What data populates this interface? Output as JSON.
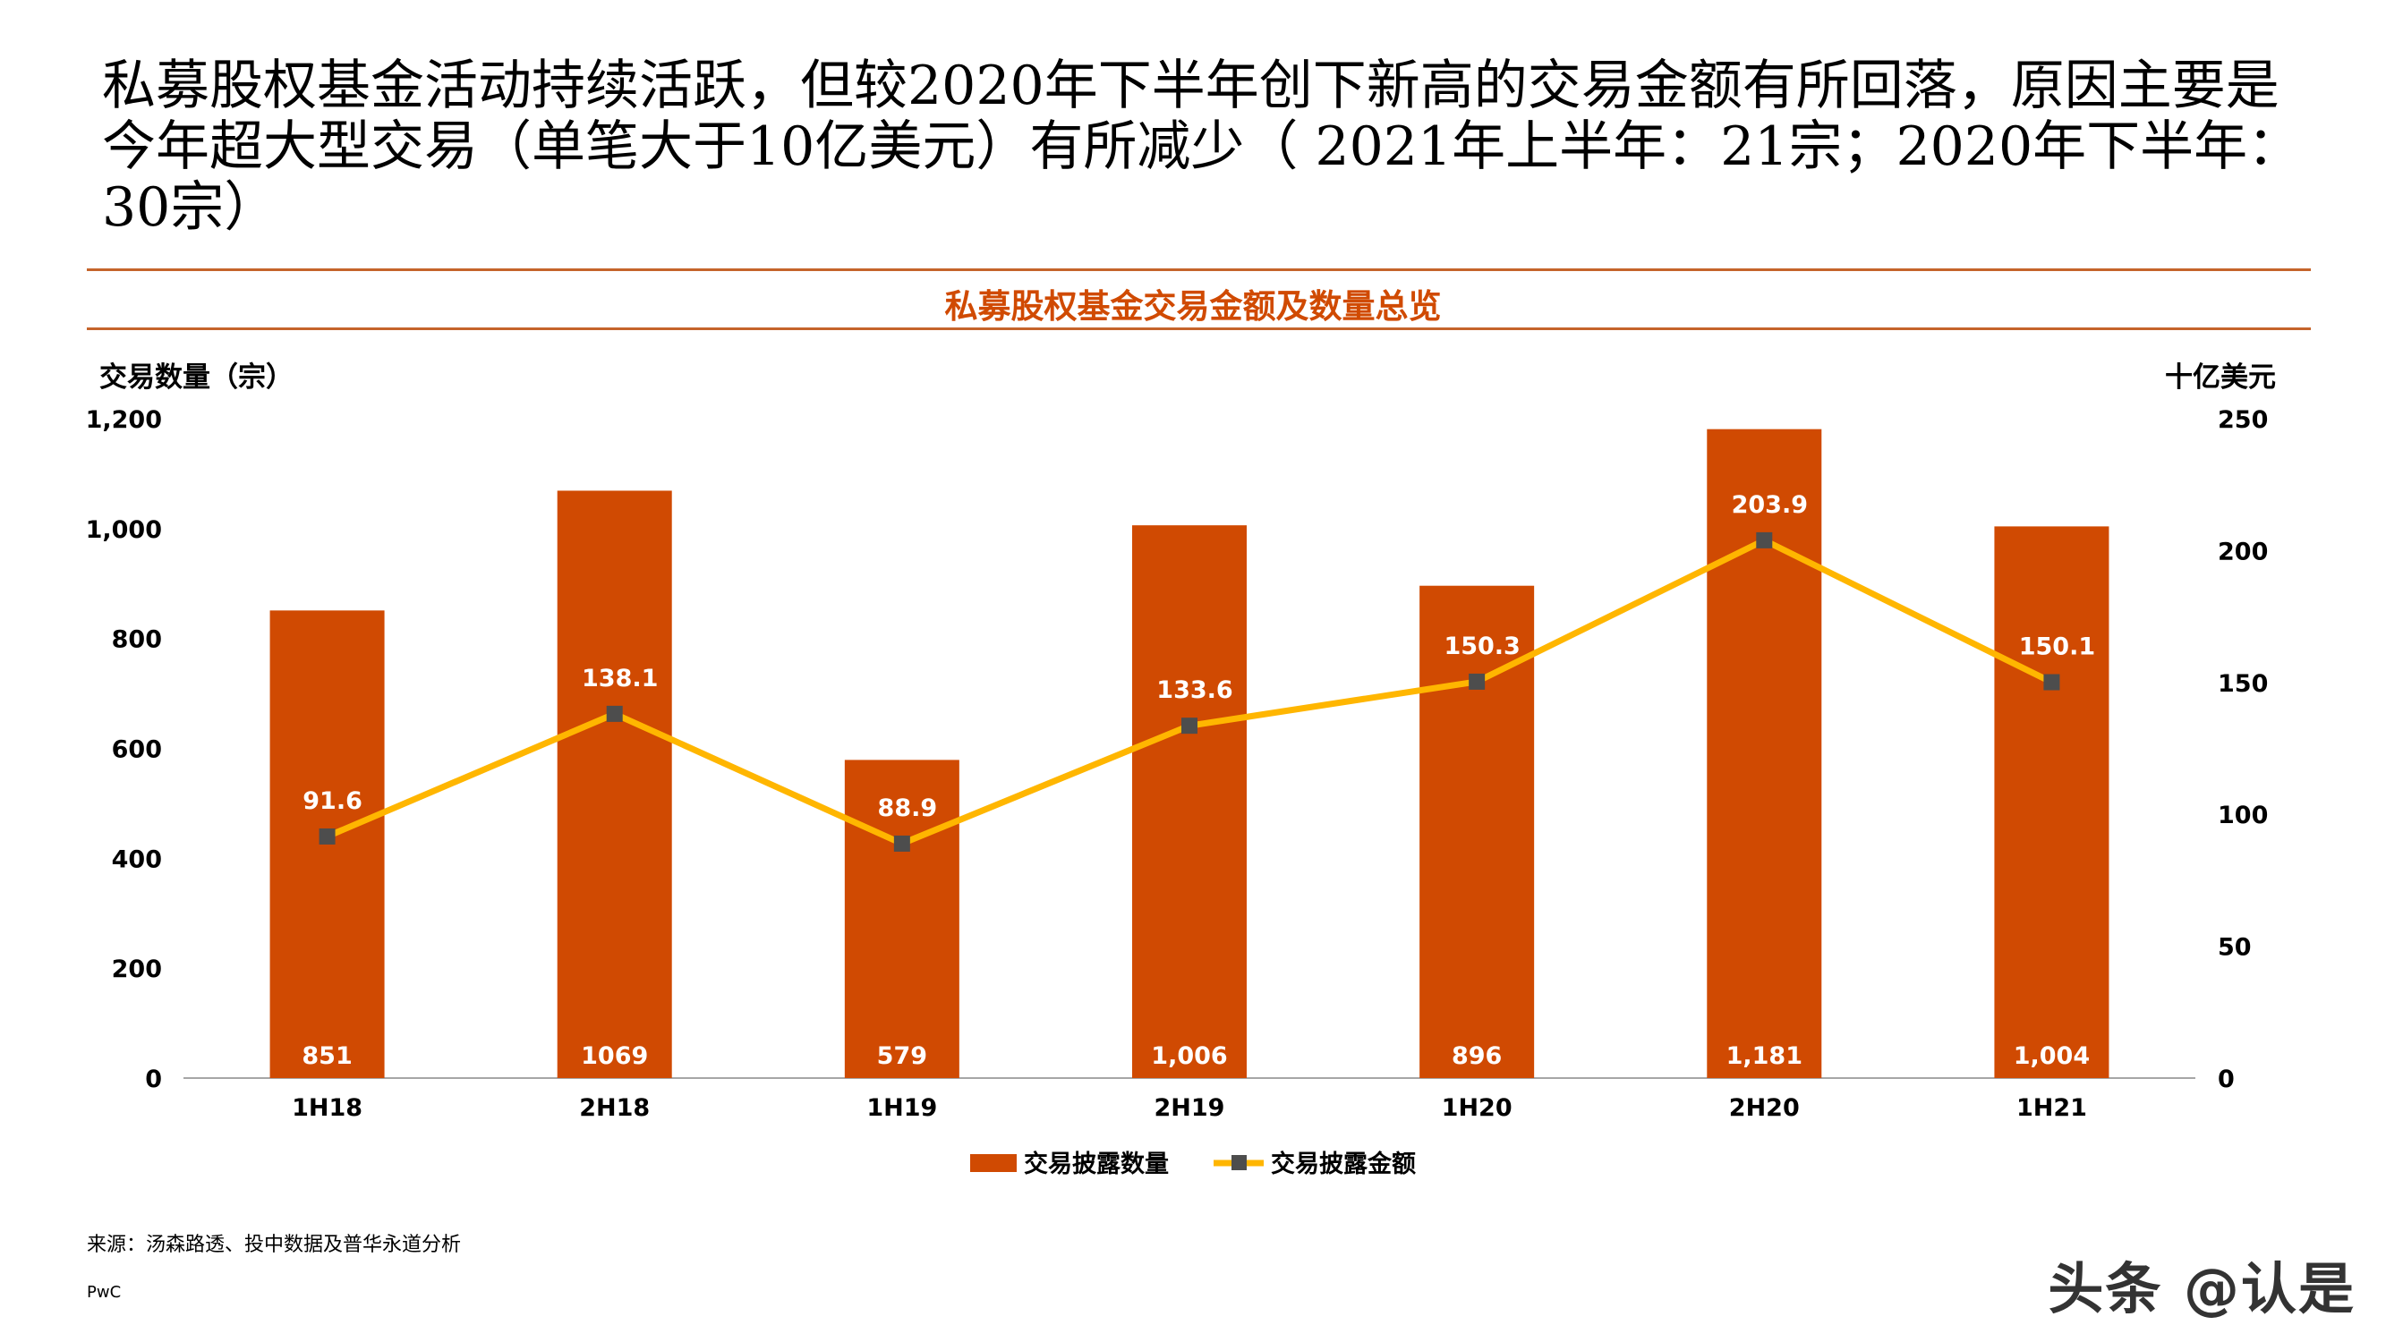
{
  "headline": "私募股权基金活动持续活跃，但较2020年下半年创下新高的交易金额有所回落，原因主要是今年超大型交易（单笔大于10亿美元）有所减少（ 2021年上半年：21宗；2020年下半年：30宗）",
  "source": "来源：汤森路透、投中数据及普华永道分析",
  "brand": "PwC",
  "watermark": "头条 @认是",
  "chart_data": {
    "type": "bar+line",
    "title": "私募股权基金交易金额及数量总览",
    "ylabel_left": "交易数量（宗）",
    "ylabel_right": "十亿美元",
    "categories": [
      "1H18",
      "2H18",
      "1H19",
      "2H19",
      "1H20",
      "2H20",
      "1H21"
    ],
    "series": [
      {
        "name": "交易披露数量",
        "type": "bar",
        "axis": "left",
        "values": [
          851,
          1069,
          579,
          1006,
          896,
          1181,
          1004
        ],
        "labels": [
          "851",
          "1069",
          "579",
          "1,006",
          "896",
          "1,181",
          "1,004"
        ],
        "color": "#D04A02"
      },
      {
        "name": "交易披露金额",
        "type": "line",
        "axis": "right",
        "values": [
          91.6,
          138.1,
          88.9,
          133.6,
          150.3,
          203.9,
          150.1
        ],
        "labels": [
          "91.6",
          "138.1",
          "88.9",
          "133.6",
          "150.3",
          "203.9",
          "150.1"
        ],
        "color": "#FFB600",
        "marker_color": "#4D4D4D"
      }
    ],
    "ylim_left": [
      0,
      1200
    ],
    "yticks_left": [
      "0",
      "200",
      "400",
      "600",
      "800",
      "1,000",
      "1,200"
    ],
    "ylim_right": [
      0,
      250
    ],
    "yticks_right": [
      "0",
      "50",
      "100",
      "150",
      "200",
      "250"
    ],
    "grid": false,
    "legend_position": "bottom",
    "accent_color": "#D04A02",
    "rule_color": "#C5642B"
  }
}
